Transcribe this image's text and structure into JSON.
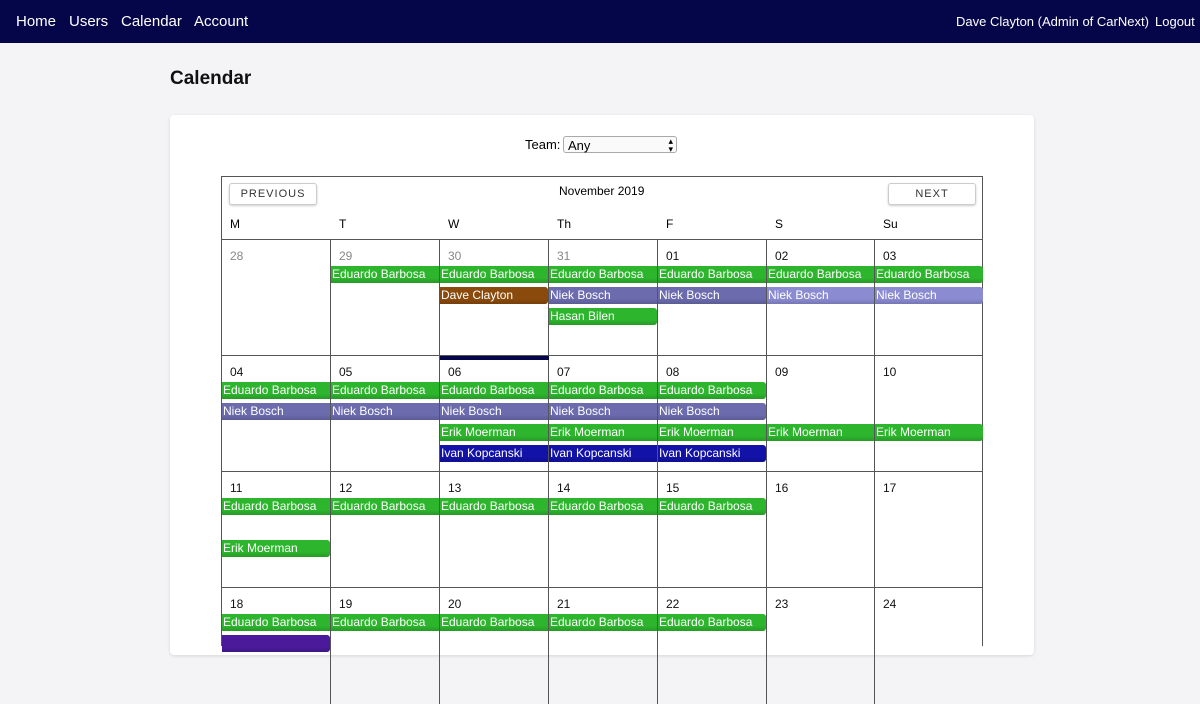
{
  "nav": {
    "links": [
      "Home",
      "Users",
      "Calendar",
      "Account"
    ],
    "user": "Dave Clayton (Admin of CarNext)",
    "logout": "Logout"
  },
  "page_title": "Calendar",
  "filter": {
    "label": "Team:",
    "value": "Any"
  },
  "calendar": {
    "month": "November 2019",
    "previous": "PREVIOUS",
    "next": "NEXT",
    "days": [
      "M",
      "T",
      "W",
      "Th",
      "F",
      "S",
      "Su"
    ],
    "colors": {
      "green": "#2db52d",
      "niek": "#6b6bae",
      "niek_light": "#8b8bd2",
      "ivan": "#1212a8",
      "dave": "#8a4a0c",
      "purple": "#4a1a9a",
      "today": "#05054a"
    },
    "weeks": [
      {
        "dates": [
          "28",
          "29",
          "30",
          "31",
          "01",
          "02",
          "03"
        ],
        "other": [
          0,
          1,
          2,
          3
        ],
        "events": [
          {
            "name": "Eduardo Barbosa",
            "day": 1,
            "lane": 0,
            "color": "green"
          },
          {
            "name": "Eduardo Barbosa",
            "day": 2,
            "lane": 0,
            "color": "green"
          },
          {
            "name": "Dave Clayton",
            "day": 2,
            "lane": 1,
            "color": "dave"
          },
          {
            "name": "Eduardo Barbosa",
            "day": 3,
            "lane": 0,
            "color": "green"
          },
          {
            "name": "Niek Bosch",
            "day": 3,
            "lane": 1,
            "color": "niek"
          },
          {
            "name": "Hasan Bilen",
            "day": 3,
            "lane": 2,
            "color": "green"
          },
          {
            "name": "Eduardo Barbosa",
            "day": 4,
            "lane": 0,
            "color": "green"
          },
          {
            "name": "Niek Bosch",
            "day": 4,
            "lane": 1,
            "color": "niek"
          },
          {
            "name": "Eduardo Barbosa",
            "day": 5,
            "lane": 0,
            "color": "green"
          },
          {
            "name": "Niek Bosch",
            "day": 5,
            "lane": 1,
            "color": "niek_light"
          },
          {
            "name": "Eduardo Barbosa",
            "day": 6,
            "lane": 0,
            "color": "green"
          },
          {
            "name": "Niek Bosch",
            "day": 6,
            "lane": 1,
            "color": "niek_light"
          }
        ]
      },
      {
        "dates": [
          "04",
          "05",
          "06",
          "07",
          "08",
          "09",
          "10"
        ],
        "other": [],
        "today": 2,
        "events": [
          {
            "name": "Eduardo Barbosa",
            "day": 0,
            "lane": 0,
            "color": "green"
          },
          {
            "name": "Eduardo Barbosa",
            "day": 1,
            "lane": 0,
            "color": "green"
          },
          {
            "name": "Eduardo Barbosa",
            "day": 2,
            "lane": 0,
            "color": "green"
          },
          {
            "name": "Eduardo Barbosa",
            "day": 3,
            "lane": 0,
            "color": "green"
          },
          {
            "name": "Eduardo Barbosa",
            "day": 4,
            "lane": 0,
            "color": "green"
          },
          {
            "name": "Niek Bosch",
            "day": 0,
            "lane": 1,
            "color": "niek"
          },
          {
            "name": "Niek Bosch",
            "day": 1,
            "lane": 1,
            "color": "niek"
          },
          {
            "name": "Niek Bosch",
            "day": 2,
            "lane": 1,
            "color": "niek"
          },
          {
            "name": "Niek Bosch",
            "day": 3,
            "lane": 1,
            "color": "niek"
          },
          {
            "name": "Niek Bosch",
            "day": 4,
            "lane": 1,
            "color": "niek"
          },
          {
            "name": "Erik Moerman",
            "day": 2,
            "lane": 2,
            "color": "green"
          },
          {
            "name": "Erik Moerman",
            "day": 3,
            "lane": 2,
            "color": "green"
          },
          {
            "name": "Erik Moerman",
            "day": 4,
            "lane": 2,
            "color": "green"
          },
          {
            "name": "Erik Moerman",
            "day": 5,
            "lane": 2,
            "color": "green"
          },
          {
            "name": "Erik Moerman",
            "day": 6,
            "lane": 2,
            "color": "green"
          },
          {
            "name": "Ivan Kopcanski",
            "day": 2,
            "lane": 3,
            "color": "ivan"
          },
          {
            "name": "Ivan Kopcanski",
            "day": 3,
            "lane": 3,
            "color": "ivan"
          },
          {
            "name": "Ivan Kopcanski",
            "day": 4,
            "lane": 3,
            "color": "ivan"
          }
        ]
      },
      {
        "dates": [
          "11",
          "12",
          "13",
          "14",
          "15",
          "16",
          "17"
        ],
        "other": [],
        "events": [
          {
            "name": "Eduardo Barbosa",
            "day": 0,
            "lane": 0,
            "color": "green"
          },
          {
            "name": "Eduardo Barbosa",
            "day": 1,
            "lane": 0,
            "color": "green"
          },
          {
            "name": "Eduardo Barbosa",
            "day": 2,
            "lane": 0,
            "color": "green"
          },
          {
            "name": "Eduardo Barbosa",
            "day": 3,
            "lane": 0,
            "color": "green"
          },
          {
            "name": "Eduardo Barbosa",
            "day": 4,
            "lane": 0,
            "color": "green"
          },
          {
            "name": "Erik Moerman",
            "day": 0,
            "lane": 2,
            "color": "green"
          }
        ]
      },
      {
        "dates": [
          "18",
          "19",
          "20",
          "21",
          "22",
          "23",
          "24"
        ],
        "other": [],
        "events": [
          {
            "name": "Eduardo Barbosa",
            "day": 0,
            "lane": 0,
            "color": "green"
          },
          {
            "name": "Eduardo Barbosa",
            "day": 1,
            "lane": 0,
            "color": "green"
          },
          {
            "name": "Eduardo Barbosa",
            "day": 2,
            "lane": 0,
            "color": "green"
          },
          {
            "name": "Eduardo Barbosa",
            "day": 3,
            "lane": 0,
            "color": "green"
          },
          {
            "name": "Eduardo Barbosa",
            "day": 4,
            "lane": 0,
            "color": "green"
          },
          {
            "name": "",
            "day": 0,
            "lane": 1,
            "color": "purple"
          }
        ]
      }
    ]
  }
}
